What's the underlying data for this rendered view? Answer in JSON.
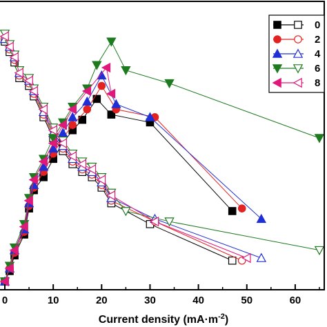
{
  "chart_data": {
    "type": "line",
    "xlabel": "Current density (mA·m",
    "xlabel_sup": "-2",
    "xlim": [
      -1,
      66
    ],
    "ylim": [
      0,
      1
    ],
    "x_ticks": [
      0,
      10,
      20,
      30,
      40,
      50,
      60
    ],
    "x_tick_labels": [
      "0",
      "10",
      "20",
      "30",
      "40",
      "50",
      "60"
    ],
    "y_ticks_shown": false,
    "legend_position": "top-right",
    "series": [
      {
        "name": "0",
        "color": "#000000",
        "marker": "square",
        "power": [
          [
            0,
            0.0
          ],
          [
            1,
            0.04
          ],
          [
            2,
            0.1
          ],
          [
            4,
            0.18
          ],
          [
            5,
            0.28
          ],
          [
            6,
            0.35
          ],
          [
            8,
            0.4
          ],
          [
            10,
            0.47
          ],
          [
            12,
            0.53
          ],
          [
            14,
            0.58
          ],
          [
            16,
            0.62
          ],
          [
            19,
            0.7
          ],
          [
            22,
            0.64
          ],
          [
            30,
            0.61
          ],
          [
            47,
            0.27
          ]
        ],
        "voltage": [
          [
            0,
            0.92
          ],
          [
            1,
            0.88
          ],
          [
            2,
            0.84
          ],
          [
            3,
            0.78
          ],
          [
            5,
            0.75
          ],
          [
            6,
            0.71
          ],
          [
            8,
            0.63
          ],
          [
            10,
            0.55
          ],
          [
            12,
            0.5
          ],
          [
            14,
            0.45
          ],
          [
            16,
            0.42
          ],
          [
            18,
            0.4
          ],
          [
            20,
            0.36
          ],
          [
            22,
            0.3
          ],
          [
            30,
            0.22
          ],
          [
            47,
            0.08
          ]
        ]
      },
      {
        "name": "2",
        "color": "#e32222",
        "marker": "circle",
        "power": [
          [
            0,
            0.0
          ],
          [
            1,
            0.05
          ],
          [
            2,
            0.11
          ],
          [
            4,
            0.19
          ],
          [
            5,
            0.29
          ],
          [
            6,
            0.36
          ],
          [
            8,
            0.42
          ],
          [
            10,
            0.49
          ],
          [
            12,
            0.55
          ],
          [
            14,
            0.6
          ],
          [
            17,
            0.66
          ],
          [
            20,
            0.75
          ],
          [
            23,
            0.66
          ],
          [
            31,
            0.63
          ],
          [
            49,
            0.28
          ]
        ],
        "voltage": [
          [
            0,
            0.93
          ],
          [
            1,
            0.89
          ],
          [
            2,
            0.85
          ],
          [
            3,
            0.79
          ],
          [
            5,
            0.76
          ],
          [
            6,
            0.72
          ],
          [
            8,
            0.64
          ],
          [
            10,
            0.56
          ],
          [
            12,
            0.51
          ],
          [
            14,
            0.46
          ],
          [
            16,
            0.43
          ],
          [
            18,
            0.41
          ],
          [
            20,
            0.37
          ],
          [
            22,
            0.31
          ],
          [
            31,
            0.23
          ],
          [
            49,
            0.08
          ]
        ]
      },
      {
        "name": "4",
        "color": "#1f2fd6",
        "marker": "triangle-up",
        "power": [
          [
            0,
            0.0
          ],
          [
            1,
            0.05
          ],
          [
            2,
            0.12
          ],
          [
            4,
            0.2
          ],
          [
            5,
            0.3
          ],
          [
            6,
            0.37
          ],
          [
            8,
            0.44
          ],
          [
            10,
            0.51
          ],
          [
            12,
            0.57
          ],
          [
            14,
            0.63
          ],
          [
            17,
            0.69
          ],
          [
            20,
            0.79
          ],
          [
            23,
            0.68
          ],
          [
            30,
            0.63
          ],
          [
            53,
            0.24
          ]
        ],
        "voltage": [
          [
            0,
            0.93
          ],
          [
            1,
            0.9
          ],
          [
            2,
            0.86
          ],
          [
            3,
            0.8
          ],
          [
            5,
            0.77
          ],
          [
            6,
            0.73
          ],
          [
            8,
            0.65
          ],
          [
            10,
            0.57
          ],
          [
            12,
            0.52
          ],
          [
            14,
            0.47
          ],
          [
            16,
            0.44
          ],
          [
            18,
            0.42
          ],
          [
            20,
            0.38
          ],
          [
            22,
            0.32
          ],
          [
            31,
            0.24
          ],
          [
            53,
            0.09
          ]
        ]
      },
      {
        "name": "6",
        "color": "#1e7a1e",
        "marker": "triangle-down",
        "power": [
          [
            0,
            0.0
          ],
          [
            1,
            0.06
          ],
          [
            2,
            0.13
          ],
          [
            4,
            0.22
          ],
          [
            5,
            0.32
          ],
          [
            6,
            0.4
          ],
          [
            8,
            0.47
          ],
          [
            10,
            0.55
          ],
          [
            12,
            0.61
          ],
          [
            14,
            0.67
          ],
          [
            17,
            0.74
          ],
          [
            19,
            0.83
          ],
          [
            22,
            0.92
          ],
          [
            25,
            0.81
          ],
          [
            34,
            0.76
          ],
          [
            65,
            0.55
          ]
        ],
        "voltage": [
          [
            0,
            0.95
          ],
          [
            1,
            0.91
          ],
          [
            2,
            0.87
          ],
          [
            3,
            0.81
          ],
          [
            5,
            0.78
          ],
          [
            6,
            0.74
          ],
          [
            8,
            0.67
          ],
          [
            10,
            0.59
          ],
          [
            12,
            0.54
          ],
          [
            14,
            0.49
          ],
          [
            16,
            0.46
          ],
          [
            18,
            0.44
          ],
          [
            20,
            0.4
          ],
          [
            22,
            0.34
          ],
          [
            25,
            0.27
          ],
          [
            34,
            0.23
          ],
          [
            65,
            0.12
          ]
        ]
      },
      {
        "name": "8",
        "color": "#e0187a",
        "marker": "triangle-left",
        "power": [
          [
            0,
            0.0
          ],
          [
            1,
            0.05
          ],
          [
            2,
            0.12
          ],
          [
            4,
            0.21
          ],
          [
            5,
            0.31
          ],
          [
            6,
            0.39
          ],
          [
            8,
            0.46
          ],
          [
            10,
            0.53
          ],
          [
            12,
            0.6
          ],
          [
            14,
            0.66
          ],
          [
            17,
            0.73
          ],
          [
            21,
            0.82
          ],
          [
            22,
            0.72
          ]
        ],
        "voltage": [
          [
            0,
            0.94
          ],
          [
            1,
            0.9
          ],
          [
            2,
            0.86
          ],
          [
            3,
            0.8
          ],
          [
            5,
            0.77
          ],
          [
            6,
            0.73
          ],
          [
            8,
            0.66
          ],
          [
            10,
            0.58
          ],
          [
            12,
            0.53
          ],
          [
            14,
            0.48
          ],
          [
            16,
            0.45
          ],
          [
            18,
            0.43
          ],
          [
            20,
            0.39
          ],
          [
            22,
            0.33
          ],
          [
            31,
            0.23
          ],
          [
            50,
            0.09
          ]
        ]
      }
    ]
  }
}
